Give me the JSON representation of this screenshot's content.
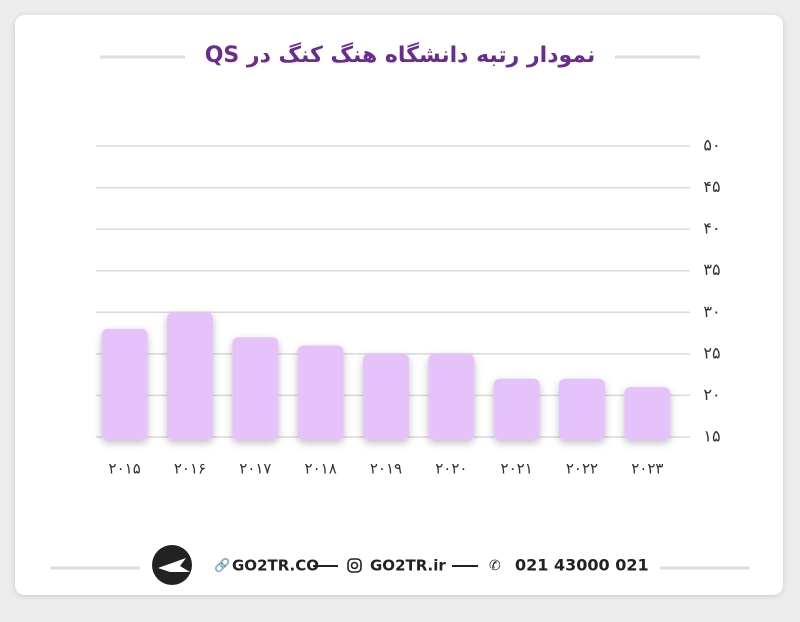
{
  "chart_data": {
    "type": "bar",
    "title": "نمودار رتبه دانشگاه هنگ کنگ در QS",
    "categories": [
      "۲۰۱۵",
      "۲۰۱۶",
      "۲۰۱۷",
      "۲۰۱۸",
      "۲۰۱۹",
      "۲۰۲۰",
      "۲۰۲۱",
      "۲۰۲۲",
      "۲۰۲۳"
    ],
    "values": [
      28,
      30,
      27,
      26,
      25,
      25,
      22,
      22,
      21
    ],
    "color": "#e6c2fa",
    "ylim": [
      15,
      50
    ],
    "yticks": [
      {
        "value": 15,
        "label": "۱۵"
      },
      {
        "value": 20,
        "label": "۲۰"
      },
      {
        "value": 25,
        "label": "۲۵"
      },
      {
        "value": 30,
        "label": "۳۰"
      },
      {
        "value": 35,
        "label": "۳۵"
      },
      {
        "value": 40,
        "label": "۴۰"
      },
      {
        "value": 45,
        "label": "۴۵"
      },
      {
        "value": 50,
        "label": "۵۰"
      }
    ],
    "grid": true
  },
  "footer": {
    "website": "GO2TR.CO",
    "instagram": "GO2TR.ir",
    "phone": "021 43000 021"
  }
}
